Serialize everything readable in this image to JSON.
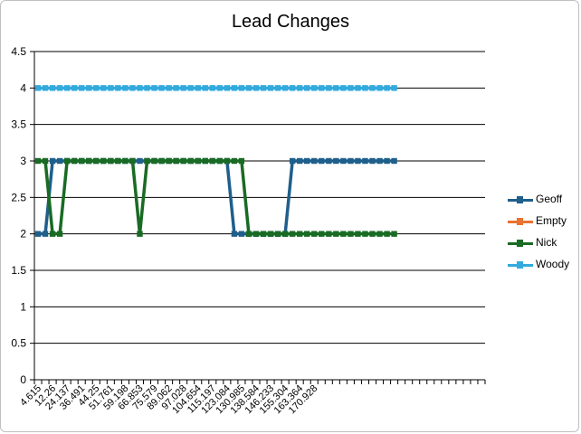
{
  "chart_data": {
    "type": "line",
    "title": "Lead Changes",
    "xlabel": "",
    "ylabel": "",
    "ylim": [
      0,
      4.5
    ],
    "yticks": [
      "0",
      "0.5",
      "1",
      "1.5",
      "2",
      "2.5",
      "3",
      "3.5",
      "4",
      "4.5"
    ],
    "grid": true,
    "legend_position": "right",
    "x_tick_labels": [
      "4.615",
      "12.26",
      "24.137",
      "36.491",
      "44.25",
      "51.761",
      "59.198",
      "66.853",
      "75.579",
      "89.062",
      "97.028",
      "104.654",
      "115.197",
      "123.084",
      "130.985",
      "138.584",
      "146.233",
      "155.304",
      "163.364",
      "170.928"
    ],
    "series": [
      {
        "name": "Geoff",
        "color": "#1f5f8b",
        "values": [
          2,
          2,
          3,
          3,
          3,
          3,
          3,
          3,
          3,
          3,
          3,
          3,
          3,
          3,
          3,
          3,
          3,
          3,
          3,
          3,
          3,
          3,
          3,
          3,
          3,
          3,
          3,
          2,
          2,
          2,
          2,
          2,
          2,
          2,
          2,
          3,
          3,
          3,
          3,
          3,
          3,
          3,
          3,
          3,
          3,
          3,
          3,
          3,
          3,
          3
        ]
      },
      {
        "name": "Empty",
        "color": "#e97132",
        "values": []
      },
      {
        "name": "Nick",
        "color": "#196b24",
        "values": [
          3,
          3,
          2,
          2,
          3,
          3,
          3,
          3,
          3,
          3,
          3,
          3,
          3,
          3,
          2,
          3,
          3,
          3,
          3,
          3,
          3,
          3,
          3,
          3,
          3,
          3,
          3,
          3,
          3,
          2,
          2,
          2,
          2,
          2,
          2,
          2,
          2,
          2,
          2,
          2,
          2,
          2,
          2,
          2,
          2,
          2,
          2,
          2,
          2,
          2
        ]
      },
      {
        "name": "Woody",
        "color": "#33aadd",
        "values": [
          4,
          4,
          4,
          4,
          4,
          4,
          4,
          4,
          4,
          4,
          4,
          4,
          4,
          4,
          4,
          4,
          4,
          4,
          4,
          4,
          4,
          4,
          4,
          4,
          4,
          4,
          4,
          4,
          4,
          4,
          4,
          4,
          4,
          4,
          4,
          4,
          4,
          4,
          4,
          4,
          4,
          4,
          4,
          4,
          4,
          4,
          4,
          4,
          4,
          4
        ]
      }
    ]
  }
}
